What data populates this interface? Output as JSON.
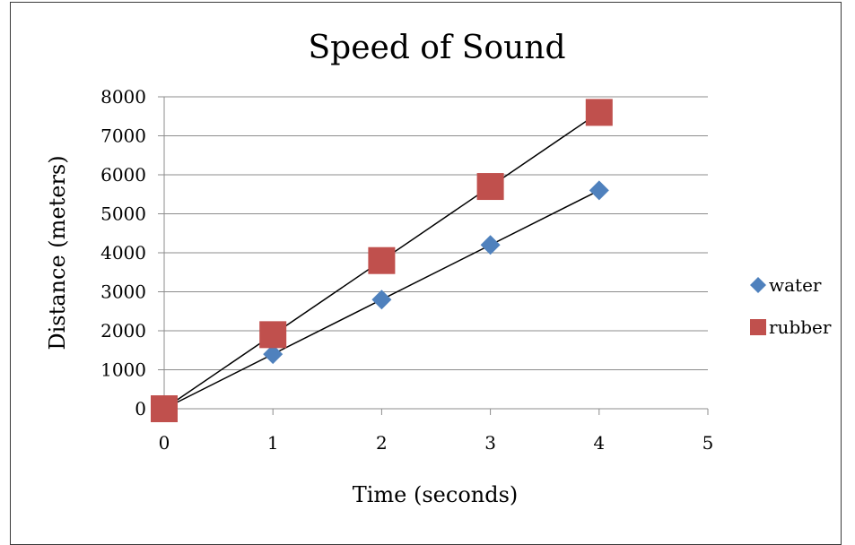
{
  "chart_data": {
    "type": "scatter",
    "title": "Speed of Sound",
    "xlabel": "Time (seconds)",
    "ylabel": "Distance (meters)",
    "xlim": [
      0,
      5
    ],
    "ylim": [
      0,
      8000
    ],
    "x_ticks": [
      "0",
      "1",
      "2",
      "3",
      "4",
      "5"
    ],
    "y_ticks": [
      "0",
      "1000",
      "2000",
      "3000",
      "4000",
      "5000",
      "6000",
      "7000",
      "8000"
    ],
    "grid": "horizontal",
    "legend_position": "right",
    "trendlines": "linear",
    "series": [
      {
        "name": "water",
        "marker": "diamond",
        "color": "#4f81bd",
        "x": [
          0,
          1,
          2,
          3,
          4
        ],
        "y": [
          0,
          1400,
          2800,
          4200,
          5600
        ]
      },
      {
        "name": "rubber",
        "marker": "square",
        "color": "#c0504d",
        "x": [
          0,
          1,
          2,
          3,
          4
        ],
        "y": [
          0,
          1900,
          3800,
          5700,
          7600
        ]
      }
    ]
  }
}
